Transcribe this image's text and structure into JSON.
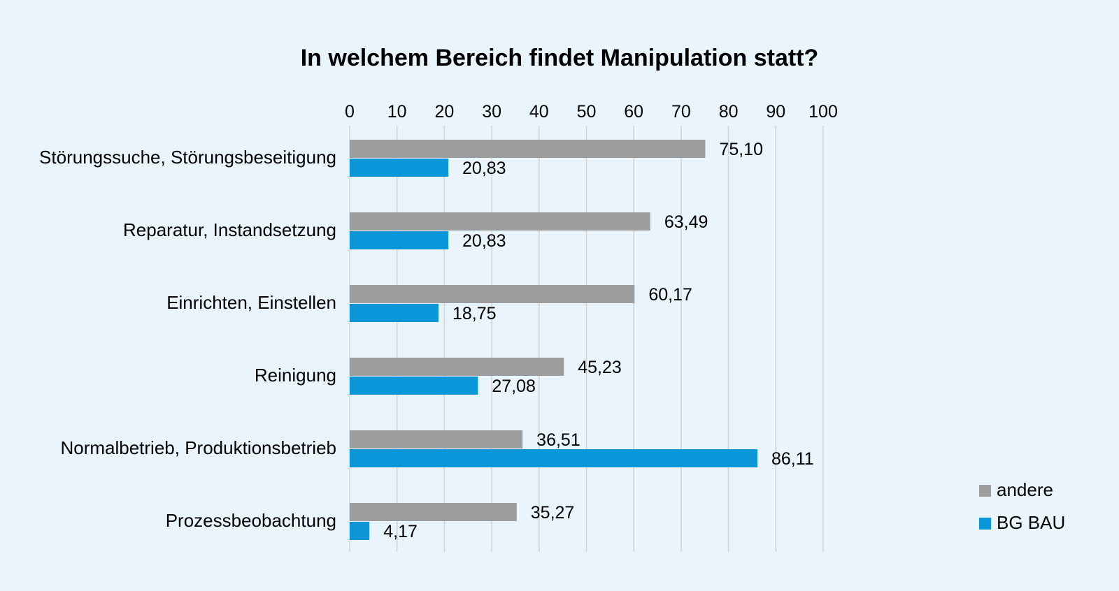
{
  "chart_data": {
    "type": "bar",
    "orientation": "horizontal",
    "title": "In welchem Bereich findet Manipulation statt?",
    "categories": [
      "Störungssuche, Störungsbeseitigung",
      "Reparatur, Instandsetzung",
      "Einrichten, Einstellen",
      "Reinigung",
      "Normalbetrieb, Produktionsbetrieb",
      "Prozessbeobachtung"
    ],
    "series": [
      {
        "name": "andere",
        "color": "#9d9d9d",
        "values": [
          75.1,
          63.49,
          60.17,
          45.23,
          36.51,
          35.27
        ],
        "labels": [
          "75,10",
          "63,49",
          "60,17",
          "45,23",
          "36,51",
          "35,27"
        ]
      },
      {
        "name": "BG BAU",
        "color": "#0a96d9",
        "values": [
          20.83,
          20.83,
          18.75,
          27.08,
          86.11,
          4.17
        ],
        "labels": [
          "20,83",
          "20,83",
          "18,75",
          "27,08",
          "86,11",
          "4,17"
        ]
      }
    ],
    "xlim": [
      0,
      100
    ],
    "xticks": [
      0,
      10,
      20,
      30,
      40,
      50,
      60,
      70,
      80,
      90,
      100
    ],
    "axis_position": "top",
    "grid": true,
    "legend_position": "bottom-right",
    "xlabel": "",
    "ylabel": ""
  }
}
